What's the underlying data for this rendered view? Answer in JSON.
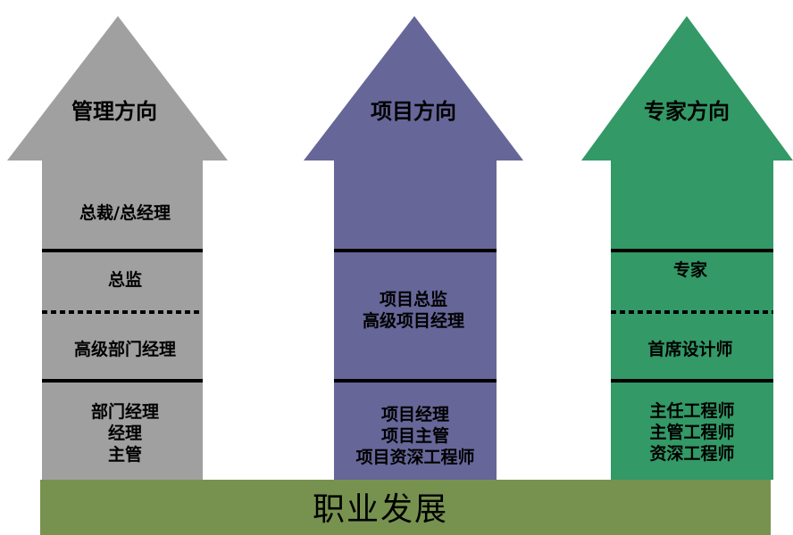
{
  "colors": {
    "management": "#a0a0a0",
    "project": "#666699",
    "expert": "#339966",
    "base": "#77924f"
  },
  "arrows": [
    {
      "title": "管理方向",
      "levels": [
        [
          "总裁/总经理"
        ],
        [
          "总监"
        ],
        [
          "高级部门经理"
        ],
        [
          "部门经理",
          "经理",
          "主管"
        ]
      ]
    },
    {
      "title": "项目方向",
      "levels": [
        [
          "项目总监",
          "高级项目经理"
        ],
        [
          "项目经理",
          "项目主管",
          "项目资深工程师"
        ]
      ]
    },
    {
      "title": "专家方向",
      "levels": [
        [
          "专家"
        ],
        [
          "首席设计师"
        ],
        [
          "主任工程师",
          "主管工程师",
          "资深工程师"
        ]
      ]
    }
  ],
  "base": {
    "label": "职业发展"
  }
}
